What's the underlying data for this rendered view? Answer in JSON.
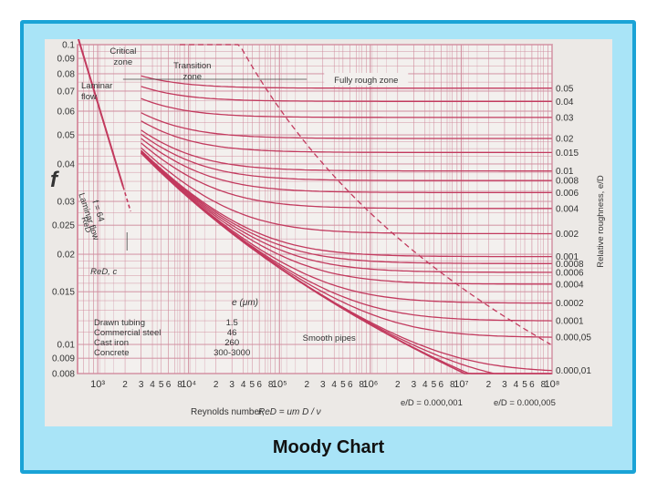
{
  "caption": "Moody Chart",
  "colors": {
    "frame_fill": "#a9e4f7",
    "frame_border": "#1aa3d6",
    "paper": "#ece9e6",
    "curve": "#c23a5e",
    "grid": "#cf8a9c",
    "text": "#333333"
  },
  "chart_data": {
    "type": "line",
    "x_scale": "log",
    "y_scale": "log",
    "xlim": [
      600,
      100000000
    ],
    "ylim": [
      0.008,
      0.1
    ],
    "ylabel": "f",
    "ylabel_right": "Relative roughness, e/D",
    "xlabel_prefix": "Reynolds number,",
    "xlabel_math": "ReD = um D / ν",
    "x_ticks": [
      {
        "value": 1000,
        "label": "10³"
      },
      {
        "value": 2000,
        "label": "2"
      },
      {
        "value": 3000,
        "label": "3"
      },
      {
        "value": 4000,
        "label": "4"
      },
      {
        "value": 5000,
        "label": "5"
      },
      {
        "value": 6000,
        "label": "6"
      },
      {
        "value": 8000,
        "label": "8"
      },
      {
        "value": 10000,
        "label": "10⁴"
      },
      {
        "value": 20000,
        "label": "2"
      },
      {
        "value": 30000,
        "label": "3"
      },
      {
        "value": 40000,
        "label": "4"
      },
      {
        "value": 50000,
        "label": "5"
      },
      {
        "value": 60000,
        "label": "6"
      },
      {
        "value": 80000,
        "label": "8"
      },
      {
        "value": 100000,
        "label": "10⁵"
      },
      {
        "value": 200000,
        "label": "2"
      },
      {
        "value": 300000,
        "label": "3"
      },
      {
        "value": 400000,
        "label": "4"
      },
      {
        "value": 500000,
        "label": "5"
      },
      {
        "value": 600000,
        "label": "6"
      },
      {
        "value": 800000,
        "label": "8"
      },
      {
        "value": 1000000,
        "label": "10⁶"
      },
      {
        "value": 2000000,
        "label": "2"
      },
      {
        "value": 3000000,
        "label": "3"
      },
      {
        "value": 4000000,
        "label": "4"
      },
      {
        "value": 5000000,
        "label": "5"
      },
      {
        "value": 6000000,
        "label": "6"
      },
      {
        "value": 8000000,
        "label": "8"
      },
      {
        "value": 10000000,
        "label": "10⁷"
      },
      {
        "value": 20000000,
        "label": "2"
      },
      {
        "value": 30000000,
        "label": "3"
      },
      {
        "value": 40000000,
        "label": "4"
      },
      {
        "value": 50000000,
        "label": "5"
      },
      {
        "value": 60000000,
        "label": "6"
      },
      {
        "value": 80000000,
        "label": "8"
      },
      {
        "value": 100000000,
        "label": "10⁸"
      }
    ],
    "y_ticks": [
      {
        "value": 0.1,
        "label": "0.1"
      },
      {
        "value": 0.09,
        "label": "0.09"
      },
      {
        "value": 0.08,
        "label": "0.08"
      },
      {
        "value": 0.07,
        "label": "0.07"
      },
      {
        "value": 0.06,
        "label": "0.06"
      },
      {
        "value": 0.05,
        "label": "0.05"
      },
      {
        "value": 0.04,
        "label": "0.04"
      },
      {
        "value": 0.03,
        "label": "0.03"
      },
      {
        "value": 0.025,
        "label": "0.025"
      },
      {
        "value": 0.02,
        "label": "0.02"
      },
      {
        "value": 0.015,
        "label": "0.015"
      },
      {
        "value": 0.01,
        "label": "0.01"
      },
      {
        "value": 0.009,
        "label": "0.009"
      },
      {
        "value": 0.008,
        "label": "0.008"
      }
    ],
    "roughness_labels": [
      {
        "value": 0.05,
        "label": "0.05"
      },
      {
        "value": 0.04,
        "label": "0.04"
      },
      {
        "value": 0.03,
        "label": "0.03"
      },
      {
        "value": 0.02,
        "label": "0.02"
      },
      {
        "value": 0.015,
        "label": "0.015"
      },
      {
        "value": 0.01,
        "label": "0.01"
      },
      {
        "value": 0.008,
        "label": "0.008"
      },
      {
        "value": 0.006,
        "label": "0.006"
      },
      {
        "value": 0.004,
        "label": "0.004"
      },
      {
        "value": 0.002,
        "label": "0.002"
      },
      {
        "value": 0.001,
        "label": "0.001"
      },
      {
        "value": 0.0008,
        "label": "0.0008"
      },
      {
        "value": 0.0006,
        "label": "0.0006"
      },
      {
        "value": 0.0004,
        "label": "0.0004"
      },
      {
        "value": 0.0002,
        "label": "0.0002"
      },
      {
        "value": 0.0001,
        "label": "0.0001"
      },
      {
        "value": 5e-05,
        "label": "0.000,05"
      },
      {
        "value": 1e-05,
        "label": "0.000,01"
      }
    ],
    "series": [
      {
        "kind": "laminar",
        "label": "Laminar flow",
        "eq_lines": [
          "Laminar flow",
          "f = 64",
          "ReD"
        ],
        "x": [
          600,
          2300
        ],
        "y": [
          0.1067,
          0.0278
        ]
      },
      {
        "kind": "smooth",
        "label": "Smooth pipes",
        "x": [
          3000,
          100000000
        ],
        "y": [
          0.0435,
          0.0063
        ]
      }
    ],
    "zones": [
      {
        "label": "Critical zone",
        "lines": [
          "Critical",
          "zone"
        ]
      },
      {
        "label": "Transition zone",
        "lines": [
          "Transition",
          "zone"
        ]
      },
      {
        "label": "Fully rough zone",
        "lines": [
          "Fully rough zone"
        ]
      }
    ],
    "annotations": {
      "laminar_flow_lines": [
        "Laminar",
        "flow"
      ],
      "critical_re": "ReD, c",
      "smooth_pipes": "Smooth pipes",
      "roughness_callouts": [
        {
          "label": "= 0.000,001",
          "lhs_num": "e",
          "lhs_den": "D"
        },
        {
          "label": "= 0.000,005",
          "lhs_num": "e",
          "lhs_den": "D"
        }
      ]
    },
    "roughness_table": {
      "header": "e (μm)",
      "rows": [
        {
          "material": "Drawn tubing",
          "value": "1.5"
        },
        {
          "material": "Commercial steel",
          "value": "46"
        },
        {
          "material": "Cast iron",
          "value": "260"
        },
        {
          "material": "Concrete",
          "value": "300-3000"
        }
      ]
    },
    "grid": true
  }
}
